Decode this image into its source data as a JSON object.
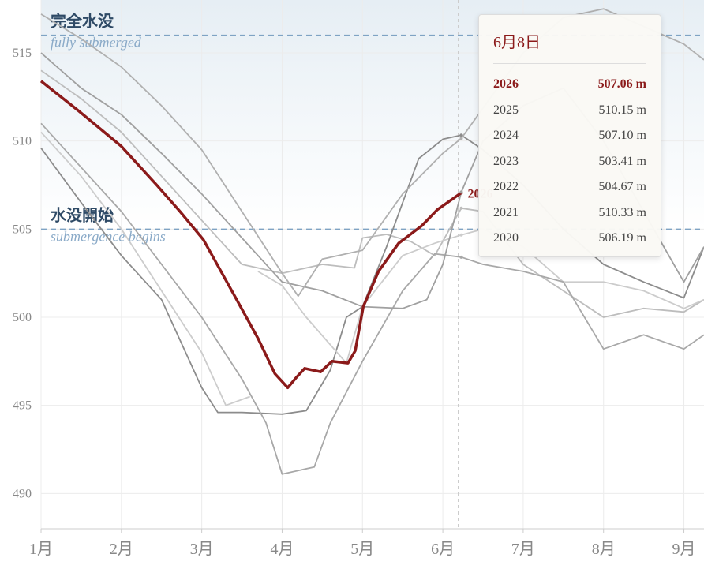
{
  "chart_data": {
    "type": "line",
    "xlim": [
      1,
      9.25
    ],
    "ylim": [
      488,
      518
    ],
    "xticks": [
      {
        "value": 1,
        "label": "1月"
      },
      {
        "value": 2,
        "label": "2月"
      },
      {
        "value": 3,
        "label": "3月"
      },
      {
        "value": 4,
        "label": "4月"
      },
      {
        "value": 5,
        "label": "5月"
      },
      {
        "value": 6,
        "label": "6月"
      },
      {
        "value": 7,
        "label": "7月"
      },
      {
        "value": 8,
        "label": "8月"
      },
      {
        "value": 9,
        "label": "9月"
      }
    ],
    "yticks": [
      490,
      495,
      500,
      505,
      510,
      515
    ],
    "grid": true,
    "ref_lines": [
      {
        "value": 516,
        "label": "完全水没",
        "sublabel": "fully submerged"
      },
      {
        "value": 505,
        "label": "水没開始",
        "sublabel": "submergence begins"
      }
    ],
    "series": [
      {
        "name": "2026",
        "color": "#8b1a1a",
        "x": [
          1,
          1.47,
          2,
          2.44,
          2.73,
          3.02,
          3.41,
          3.7,
          3.91,
          4.07,
          4.18,
          4.28,
          4.48,
          4.62,
          4.82,
          4.91,
          5.01,
          5.2,
          5.45,
          5.74,
          5.93,
          6.23
        ],
        "values": [
          513.4,
          511.7,
          509.7,
          507.5,
          506.0,
          504.4,
          501.2,
          498.8,
          496.8,
          496.0,
          496.6,
          497.1,
          496.9,
          497.5,
          497.4,
          498.1,
          500.6,
          502.6,
          504.2,
          505.2,
          506.1,
          507.06
        ]
      },
      {
        "name": "2025",
        "color": "#b0b0b0",
        "x": [
          1,
          1.5,
          2,
          2.5,
          3,
          3.5,
          4,
          4.2,
          4.5,
          5,
          5.5,
          6,
          6.23,
          6.6,
          7,
          7.5,
          8,
          8.5,
          9,
          9.25
        ],
        "values": [
          517.2,
          515.8,
          514.2,
          512,
          509.5,
          506,
          502.5,
          501.2,
          503.3,
          503.8,
          507,
          509.3,
          510.15,
          512.5,
          515,
          517,
          517.5,
          516.5,
          515.5,
          514.6
        ]
      },
      {
        "name": "2024",
        "color": "#a0a0a0",
        "x": [
          1,
          1.5,
          2,
          2.5,
          3,
          3.5,
          4,
          4.5,
          5,
          5.5,
          5.8,
          6,
          6.23,
          6.5,
          7,
          7.5,
          8,
          8.5,
          9,
          9.25
        ],
        "values": [
          515,
          513,
          511.5,
          509.3,
          507,
          504.5,
          502,
          501.5,
          500.6,
          500.5,
          501,
          503,
          507.1,
          510,
          512,
          513,
          510,
          506,
          502,
          504
        ]
      },
      {
        "name": "2023",
        "color": "#a8a8a8",
        "x": [
          1,
          1.5,
          2,
          2.5,
          3,
          3.5,
          3.8,
          4,
          4.4,
          4.6,
          5,
          5.5,
          5.9,
          6.23,
          6.5,
          7,
          7.5,
          8,
          8.5,
          9,
          9.25
        ],
        "values": [
          511,
          508.5,
          506,
          503,
          500,
          496.5,
          494,
          491.1,
          491.5,
          494,
          497.5,
          501.5,
          503.6,
          503.41,
          503,
          502.6,
          502,
          498.2,
          499,
          498.2,
          499
        ]
      },
      {
        "name": "2022",
        "color": "#cccccc",
        "x": [
          1,
          1.5,
          2,
          2.5,
          3,
          3.3,
          3.6,
          null,
          3.7,
          4,
          4.3,
          4.8,
          5,
          5.5,
          5.9,
          6.23,
          6.5,
          7,
          7.5,
          8,
          8.5,
          9,
          9.25
        ],
        "values": [
          510.5,
          508,
          505,
          501.5,
          498,
          495,
          495.5,
          null,
          502.6,
          501.8,
          500,
          497.4,
          500.6,
          503.5,
          504.2,
          504.67,
          505,
          504,
          502,
          502,
          501.5,
          500.5,
          501
        ]
      },
      {
        "name": "2021",
        "color": "#8c8c8c",
        "x": [
          1,
          1.5,
          2,
          2.5,
          3,
          3.2,
          3.5,
          4,
          4.3,
          4.6,
          4.8,
          5,
          5.3,
          5.7,
          6,
          6.23,
          6.5,
          7,
          7.5,
          8,
          8.5,
          9,
          9.25
        ],
        "values": [
          509.6,
          506.5,
          503.5,
          501,
          496,
          494.6,
          494.6,
          494.5,
          494.7,
          497,
          500,
          500.6,
          504,
          509,
          510.1,
          510.33,
          509.5,
          507.5,
          505,
          503,
          502,
          501.1,
          504
        ]
      },
      {
        "name": "2020",
        "color": "#bdbdbd",
        "x": [
          1,
          1.5,
          2,
          2.5,
          3,
          3.5,
          4,
          4.5,
          4.9,
          5,
          5.3,
          5.6,
          5.9,
          6.23,
          6.5,
          7,
          7.5,
          8,
          8.5,
          9,
          9.25
        ],
        "values": [
          514,
          512.4,
          510.5,
          508,
          505.5,
          503,
          502.5,
          503,
          502.8,
          504.5,
          504.7,
          504.3,
          503.5,
          506.19,
          506,
          503,
          501.5,
          500,
          500.5,
          500.3,
          501
        ]
      }
    ],
    "tooltip": {
      "title": "6月8日",
      "rows": [
        {
          "year": "2026",
          "value": 507.06,
          "label": "507.06 m"
        },
        {
          "year": "2025",
          "value": 510.15,
          "label": "510.15 m"
        },
        {
          "year": "2024",
          "value": 507.1,
          "label": "507.10 m"
        },
        {
          "year": "2023",
          "value": 503.41,
          "label": "503.41 m"
        },
        {
          "year": "2022",
          "value": 504.67,
          "label": "504.67 m"
        },
        {
          "year": "2021",
          "value": 510.33,
          "label": "510.33 m"
        },
        {
          "year": "2020",
          "value": 506.19,
          "label": "506.19 m"
        }
      ]
    }
  }
}
